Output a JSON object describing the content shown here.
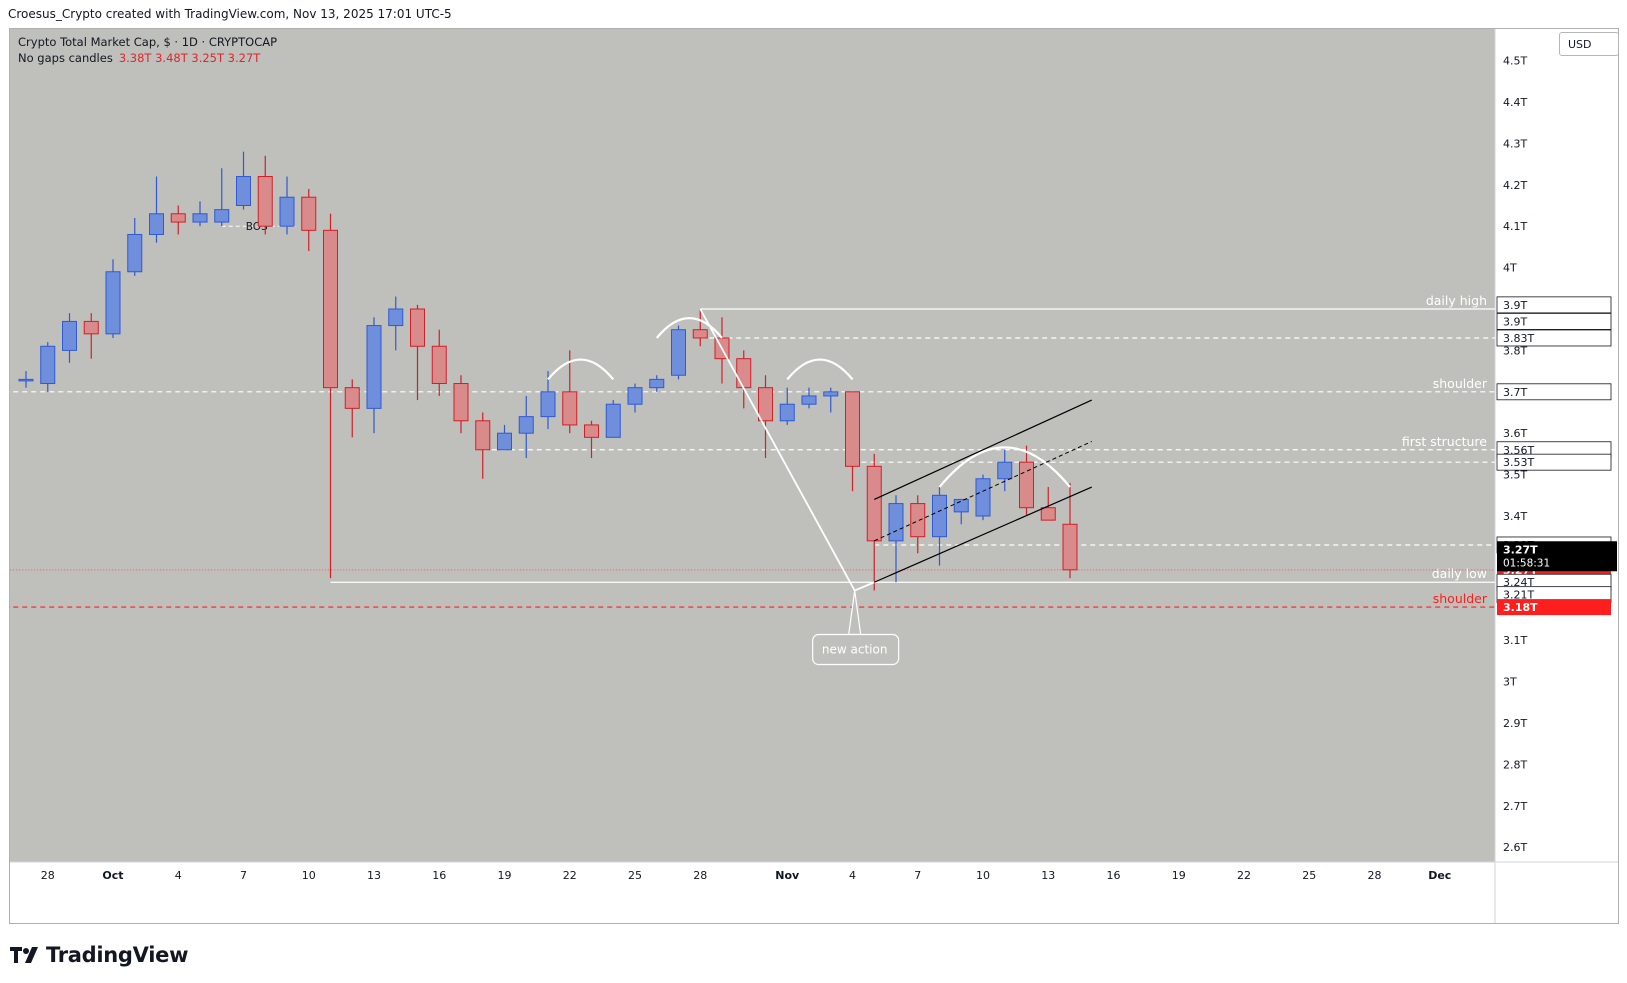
{
  "header": {
    "attribution": "Croesus_Crypto created with TradingView.com, Nov 13, 2025 17:01 UTC-5"
  },
  "legend": {
    "symbol_line": "Crypto Total Market Cap, $ · 1D · CRYPTOCAP",
    "study_name": "No gaps candles",
    "ohlc": "3.38T 3.48T 3.25T 3.27T"
  },
  "currency_button": "USD",
  "footer": {
    "brand": "TradingView"
  },
  "colors": {
    "plot_bg": "#bfbfbb",
    "bull": "#6f8fdc",
    "bull_border": "#2f5ad3",
    "bear": "#d98a8a",
    "bear_border": "#d31f26",
    "accent_red": "#ff1e1e"
  },
  "chart_data": {
    "type": "candlestick",
    "title": "Crypto Total Market Cap, $ · 1D · CRYPTOCAP",
    "unit": "T",
    "ylim": [
      2.56,
      4.52
    ],
    "price_ticks": [
      "2.6T",
      "2.7T",
      "2.8T",
      "2.9T",
      "3T",
      "3.1T",
      "3.2T",
      "3.3T",
      "3.4T",
      "3.5T",
      "3.6T",
      "3.7T",
      "3.8T",
      "3.9T",
      "4T",
      "4.1T",
      "4.2T",
      "4.3T",
      "4.4T",
      "4.5T"
    ],
    "x_ticks": [
      {
        "day": -3,
        "label": "28"
      },
      {
        "day": 0,
        "label": "Oct"
      },
      {
        "day": 3,
        "label": "4"
      },
      {
        "day": 6,
        "label": "7"
      },
      {
        "day": 9,
        "label": "10"
      },
      {
        "day": 12,
        "label": "13"
      },
      {
        "day": 15,
        "label": "16"
      },
      {
        "day": 18,
        "label": "19"
      },
      {
        "day": 21,
        "label": "22"
      },
      {
        "day": 24,
        "label": "25"
      },
      {
        "day": 27,
        "label": "28"
      },
      {
        "day": 31,
        "label": "Nov"
      },
      {
        "day": 34,
        "label": "4"
      },
      {
        "day": 37,
        "label": "7"
      },
      {
        "day": 40,
        "label": "10"
      },
      {
        "day": 43,
        "label": "13"
      },
      {
        "day": 46,
        "label": "16"
      },
      {
        "day": 49,
        "label": "19"
      },
      {
        "day": 52,
        "label": "22"
      },
      {
        "day": 55,
        "label": "25"
      },
      {
        "day": 58,
        "label": "28"
      },
      {
        "day": 61,
        "label": "Dec"
      }
    ],
    "candles": [
      {
        "d": -4,
        "o": 3.73,
        "h": 3.75,
        "l": 3.71,
        "c": 3.73
      },
      {
        "d": -3,
        "o": 3.72,
        "h": 3.82,
        "l": 3.7,
        "c": 3.81
      },
      {
        "d": -2,
        "o": 3.8,
        "h": 3.89,
        "l": 3.77,
        "c": 3.87
      },
      {
        "d": -1,
        "o": 3.87,
        "h": 3.89,
        "l": 3.78,
        "c": 3.84
      },
      {
        "d": 0,
        "o": 3.84,
        "h": 4.02,
        "l": 3.83,
        "c": 3.99
      },
      {
        "d": 1,
        "o": 3.99,
        "h": 4.12,
        "l": 3.98,
        "c": 4.08
      },
      {
        "d": 2,
        "o": 4.08,
        "h": 4.22,
        "l": 4.06,
        "c": 4.13
      },
      {
        "d": 3,
        "o": 4.13,
        "h": 4.15,
        "l": 4.08,
        "c": 4.11
      },
      {
        "d": 4,
        "o": 4.11,
        "h": 4.16,
        "l": 4.1,
        "c": 4.13
      },
      {
        "d": 5,
        "o": 4.11,
        "h": 4.24,
        "l": 4.1,
        "c": 4.14
      },
      {
        "d": 6,
        "o": 4.15,
        "h": 4.28,
        "l": 4.14,
        "c": 4.22
      },
      {
        "d": 7,
        "o": 4.22,
        "h": 4.27,
        "l": 4.08,
        "c": 4.1
      },
      {
        "d": 8,
        "o": 4.1,
        "h": 4.22,
        "l": 4.08,
        "c": 4.17
      },
      {
        "d": 9,
        "o": 4.17,
        "h": 4.19,
        "l": 4.04,
        "c": 4.09
      },
      {
        "d": 10,
        "o": 4.09,
        "h": 4.13,
        "l": 3.25,
        "c": 3.71
      },
      {
        "d": 11,
        "o": 3.71,
        "h": 3.73,
        "l": 3.59,
        "c": 3.66
      },
      {
        "d": 12,
        "o": 3.66,
        "h": 3.88,
        "l": 3.6,
        "c": 3.86
      },
      {
        "d": 13,
        "o": 3.86,
        "h": 3.93,
        "l": 3.8,
        "c": 3.9
      },
      {
        "d": 14,
        "o": 3.9,
        "h": 3.91,
        "l": 3.68,
        "c": 3.81
      },
      {
        "d": 15,
        "o": 3.81,
        "h": 3.85,
        "l": 3.69,
        "c": 3.72
      },
      {
        "d": 16,
        "o": 3.72,
        "h": 3.74,
        "l": 3.6,
        "c": 3.63
      },
      {
        "d": 17,
        "o": 3.63,
        "h": 3.65,
        "l": 3.49,
        "c": 3.56
      },
      {
        "d": 18,
        "o": 3.56,
        "h": 3.62,
        "l": 3.56,
        "c": 3.6
      },
      {
        "d": 19,
        "o": 3.6,
        "h": 3.69,
        "l": 3.54,
        "c": 3.64
      },
      {
        "d": 20,
        "o": 3.64,
        "h": 3.75,
        "l": 3.61,
        "c": 3.7
      },
      {
        "d": 21,
        "o": 3.7,
        "h": 3.8,
        "l": 3.6,
        "c": 3.62
      },
      {
        "d": 22,
        "o": 3.62,
        "h": 3.63,
        "l": 3.54,
        "c": 3.59
      },
      {
        "d": 23,
        "o": 3.59,
        "h": 3.68,
        "l": 3.59,
        "c": 3.67
      },
      {
        "d": 24,
        "o": 3.67,
        "h": 3.72,
        "l": 3.65,
        "c": 3.71
      },
      {
        "d": 25,
        "o": 3.71,
        "h": 3.74,
        "l": 3.7,
        "c": 3.73
      },
      {
        "d": 26,
        "o": 3.74,
        "h": 3.86,
        "l": 3.73,
        "c": 3.85
      },
      {
        "d": 27,
        "o": 3.85,
        "h": 3.9,
        "l": 3.81,
        "c": 3.83
      },
      {
        "d": 28,
        "o": 3.83,
        "h": 3.88,
        "l": 3.72,
        "c": 3.78
      },
      {
        "d": 29,
        "o": 3.78,
        "h": 3.8,
        "l": 3.66,
        "c": 3.71
      },
      {
        "d": 30,
        "o": 3.71,
        "h": 3.74,
        "l": 3.54,
        "c": 3.63
      },
      {
        "d": 31,
        "o": 3.63,
        "h": 3.71,
        "l": 3.62,
        "c": 3.67
      },
      {
        "d": 32,
        "o": 3.67,
        "h": 3.71,
        "l": 3.66,
        "c": 3.69
      },
      {
        "d": 33,
        "o": 3.69,
        "h": 3.71,
        "l": 3.65,
        "c": 3.7
      },
      {
        "d": 34,
        "o": 3.7,
        "h": 3.7,
        "l": 3.46,
        "c": 3.52
      },
      {
        "d": 35,
        "o": 3.52,
        "h": 3.55,
        "l": 3.22,
        "c": 3.34
      },
      {
        "d": 36,
        "o": 3.34,
        "h": 3.45,
        "l": 3.24,
        "c": 3.43
      },
      {
        "d": 37,
        "o": 3.43,
        "h": 3.45,
        "l": 3.31,
        "c": 3.35
      },
      {
        "d": 38,
        "o": 3.35,
        "h": 3.47,
        "l": 3.28,
        "c": 3.45
      },
      {
        "d": 39,
        "o": 3.41,
        "h": 3.44,
        "l": 3.38,
        "c": 3.44
      },
      {
        "d": 40,
        "o": 3.4,
        "h": 3.5,
        "l": 3.39,
        "c": 3.49
      },
      {
        "d": 41,
        "o": 3.49,
        "h": 3.56,
        "l": 3.46,
        "c": 3.53
      },
      {
        "d": 42,
        "o": 3.53,
        "h": 3.57,
        "l": 3.4,
        "c": 3.42
      },
      {
        "d": 43,
        "o": 3.42,
        "h": 3.47,
        "l": 3.39,
        "c": 3.39
      },
      {
        "d": 44,
        "o": 3.38,
        "h": 3.48,
        "l": 3.25,
        "c": 3.27
      }
    ],
    "horizontal_levels": [
      {
        "price": 3.9,
        "label": "daily high",
        "style": "solid",
        "color": "#ffffff",
        "from": 27
      },
      {
        "price": 3.83,
        "label": "",
        "style": "dashed",
        "color": "#ffffff",
        "from": 27
      },
      {
        "price": 3.7,
        "label": "shoulder",
        "style": "dashed",
        "color": "#ffffff",
        "from": -5
      },
      {
        "price": 3.56,
        "label": "first structure",
        "style": "dashed",
        "color": "#ffffff",
        "from": 17
      },
      {
        "price": 3.53,
        "label": "",
        "style": "dashed",
        "color": "#ffffff",
        "from": 34
      },
      {
        "price": 3.33,
        "label": "",
        "style": "dashed",
        "color": "#ffffff",
        "from": 35
      },
      {
        "price": 3.24,
        "label": "daily low",
        "style": "solid",
        "color": "#ffffff",
        "from": 10
      },
      {
        "price": 3.18,
        "label": "shoulder",
        "style": "dashed",
        "color": "#ff1e1e",
        "from": -5
      },
      {
        "price": 3.27,
        "label": "",
        "style": "dotted",
        "color": "#ff5050",
        "from": -5
      }
    ],
    "price_badges": [
      {
        "price": 3.91,
        "text": "3.9T",
        "kind": "white"
      },
      {
        "price": 3.87,
        "text": "3.9T",
        "kind": "white"
      },
      {
        "price": 3.83,
        "text": "3.83T",
        "kind": "white"
      },
      {
        "price": 3.7,
        "text": "3.7T",
        "kind": "white"
      },
      {
        "price": 3.56,
        "text": "3.56T",
        "kind": "white"
      },
      {
        "price": 3.53,
        "text": "3.53T",
        "kind": "white"
      },
      {
        "price": 3.33,
        "text": "3.33T",
        "kind": "white"
      },
      {
        "price": 3.27,
        "text": "3.27T",
        "kind": "red"
      },
      {
        "price": 3.24,
        "text": "3.24T",
        "kind": "white"
      },
      {
        "price": 3.21,
        "text": "3.21T",
        "kind": "white"
      },
      {
        "price": 3.18,
        "text": "3.18T",
        "kind": "red"
      }
    ],
    "current_price": {
      "text": "3.27T",
      "countdown": "01:58:31",
      "price": 3.31
    },
    "annotations": {
      "bos_label": "BOS",
      "bos_level": 4.1,
      "bos_from": 5,
      "bos_to": 7,
      "arcs": [
        {
          "d1": 20,
          "d2": 23,
          "price": 3.73
        },
        {
          "d1": 25,
          "d2": 28,
          "price": 3.83
        },
        {
          "d1": 31,
          "d2": 34,
          "price": 3.73
        },
        {
          "d1": 38,
          "d2": 44,
          "price": 3.47
        }
      ],
      "channel": {
        "upper": {
          "d1": 35,
          "p1": 3.44,
          "d2": 45,
          "p2": 3.68
        },
        "middle": {
          "d1": 35,
          "p1": 3.34,
          "d2": 45,
          "p2": 3.58
        },
        "lower": {
          "d1": 35,
          "p1": 3.24,
          "d2": 45,
          "p2": 3.47
        }
      },
      "trend_lines": [
        {
          "d1": 27,
          "p1": 3.9,
          "d2": 34.1,
          "p2": 3.22
        },
        {
          "d1": 34.1,
          "p1": 3.22,
          "d2": 35,
          "p2": 3.24
        }
      ],
      "callout": {
        "text": "new action",
        "d": 34.1,
        "p": 3.22
      }
    }
  }
}
